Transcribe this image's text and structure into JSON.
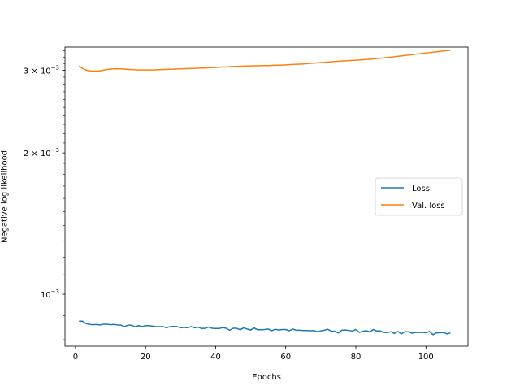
{
  "chart_data": {
    "type": "line",
    "title": "",
    "xlabel": "Epochs",
    "ylabel": "Negative log likelihood",
    "xlim": [
      -3,
      112
    ],
    "ylim": [
      0.000775,
      0.00336
    ],
    "yscale": "log",
    "grid": false,
    "legend_position": "center-right",
    "x_ticks": [
      0,
      20,
      40,
      60,
      80,
      100
    ],
    "x_tick_labels": [
      "0",
      "20",
      "40",
      "60",
      "80",
      "100"
    ],
    "y_ticks": [
      0.001,
      0.002,
      0.003
    ],
    "y_tick_labels": [
      {
        "base": "10",
        "exp": "−3",
        "prefix": ""
      },
      {
        "base": "10",
        "exp": "−3",
        "prefix": "2 × "
      },
      {
        "base": "10",
        "exp": "−3",
        "prefix": "3 × "
      }
    ],
    "series": [
      {
        "name": "Loss",
        "color": "#1f77b4",
        "x": [
          1,
          2,
          3,
          4,
          5,
          6,
          7,
          8,
          9,
          10,
          11,
          12,
          13,
          14,
          15,
          16,
          17,
          18,
          19,
          20,
          21,
          22,
          23,
          24,
          25,
          26,
          27,
          28,
          29,
          30,
          31,
          32,
          33,
          34,
          35,
          36,
          37,
          38,
          39,
          40,
          41,
          42,
          43,
          44,
          45,
          46,
          47,
          48,
          49,
          50,
          51,
          52,
          53,
          54,
          55,
          56,
          57,
          58,
          59,
          60,
          61,
          62,
          63,
          64,
          65,
          66,
          67,
          68,
          69,
          70,
          71,
          72,
          73,
          74,
          75,
          76,
          77,
          78,
          79,
          80,
          81,
          82,
          83,
          84,
          85,
          86,
          87,
          88,
          89,
          90,
          91,
          92,
          93,
          94,
          95,
          96,
          97,
          98,
          99,
          100,
          101,
          102,
          103,
          104,
          105,
          106,
          107
        ],
        "y": [
          0.000876,
          0.000876,
          0.000866,
          0.000862,
          0.000861,
          0.000862,
          0.00086,
          0.000863,
          0.000863,
          0.000861,
          0.000862,
          0.00086,
          0.000859,
          0.000853,
          0.000859,
          0.000859,
          0.000852,
          0.000857,
          0.000853,
          0.000857,
          0.000857,
          0.000855,
          0.000853,
          0.000853,
          0.000853,
          0.000848,
          0.000853,
          0.000854,
          0.000853,
          0.000848,
          0.00085,
          0.000848,
          0.000853,
          0.000848,
          0.000851,
          0.000845,
          0.000846,
          0.000851,
          0.000846,
          0.000845,
          0.000845,
          0.000849,
          0.000846,
          0.000838,
          0.000846,
          0.000846,
          0.00084,
          0.000848,
          0.000843,
          0.000839,
          0.000847,
          0.00084,
          0.00084,
          0.000841,
          0.000843,
          0.000836,
          0.000842,
          0.000839,
          0.000841,
          0.000841,
          0.000836,
          0.000843,
          0.000838,
          0.000838,
          0.000837,
          0.000837,
          0.000836,
          0.000837,
          0.000832,
          0.000835,
          0.000838,
          0.000842,
          0.000834,
          0.000834,
          0.000827,
          0.000838,
          0.000839,
          0.000837,
          0.000835,
          0.000841,
          0.000829,
          0.000834,
          0.000836,
          0.000831,
          0.000841,
          0.000835,
          0.000835,
          0.000829,
          0.000829,
          0.000832,
          0.000825,
          0.000833,
          0.000823,
          0.000832,
          0.000832,
          0.000826,
          0.000829,
          0.000829,
          0.000829,
          0.000828,
          0.000833,
          0.00082,
          0.000827,
          0.000828,
          0.000829,
          0.000823,
          0.000827
        ]
      },
      {
        "name": "Val. loss",
        "color": "#ff7f0e",
        "x": [
          1,
          2,
          3,
          4,
          5,
          6,
          7,
          8,
          9,
          10,
          11,
          12,
          13,
          14,
          15,
          16,
          17,
          18,
          19,
          20,
          21,
          22,
          23,
          24,
          25,
          26,
          27,
          28,
          29,
          30,
          31,
          32,
          33,
          34,
          35,
          36,
          37,
          38,
          39,
          40,
          41,
          42,
          43,
          44,
          45,
          46,
          47,
          48,
          49,
          50,
          51,
          52,
          53,
          54,
          55,
          56,
          57,
          58,
          59,
          60,
          61,
          62,
          63,
          64,
          65,
          66,
          67,
          68,
          69,
          70,
          71,
          72,
          73,
          74,
          75,
          76,
          77,
          78,
          79,
          80,
          81,
          82,
          83,
          84,
          85,
          86,
          87,
          88,
          89,
          90,
          91,
          92,
          93,
          94,
          95,
          96,
          97,
          98,
          99,
          100,
          101,
          102,
          103,
          104,
          105,
          106,
          107
        ],
        "y": [
          0.003062,
          0.003027,
          0.003002,
          0.00299,
          0.002987,
          0.002987,
          0.002992,
          0.003001,
          0.003011,
          0.003017,
          0.00302,
          0.003021,
          0.003019,
          0.003016,
          0.003012,
          0.003009,
          0.003006,
          0.003004,
          0.003003,
          0.003003,
          0.003003,
          0.003004,
          0.003006,
          0.003008,
          0.00301,
          0.003012,
          0.003014,
          0.003016,
          0.003018,
          0.00302,
          0.003022,
          0.003024,
          0.003026,
          0.003028,
          0.00303,
          0.003032,
          0.003034,
          0.003037,
          0.003039,
          0.003042,
          0.003044,
          0.003047,
          0.003049,
          0.003052,
          0.003055,
          0.003057,
          0.003059,
          0.003061,
          0.003063,
          0.003064,
          0.003065,
          0.003066,
          0.003067,
          0.003068,
          0.003069,
          0.003071,
          0.003073,
          0.003075,
          0.003077,
          0.003079,
          0.003082,
          0.003085,
          0.003088,
          0.003091,
          0.003094,
          0.003098,
          0.003102,
          0.003106,
          0.00311,
          0.003114,
          0.003118,
          0.003122,
          0.003126,
          0.00313,
          0.003134,
          0.003138,
          0.003142,
          0.003145,
          0.003148,
          0.003151,
          0.003154,
          0.003158,
          0.003162,
          0.003166,
          0.003171,
          0.003176,
          0.003181,
          0.003187,
          0.003193,
          0.003199,
          0.003205,
          0.003212,
          0.003218,
          0.003225,
          0.003231,
          0.003238,
          0.003244,
          0.003251,
          0.003257,
          0.003264,
          0.00327,
          0.003277,
          0.003284,
          0.003291,
          0.003297,
          0.003303,
          0.003308
        ]
      }
    ]
  }
}
